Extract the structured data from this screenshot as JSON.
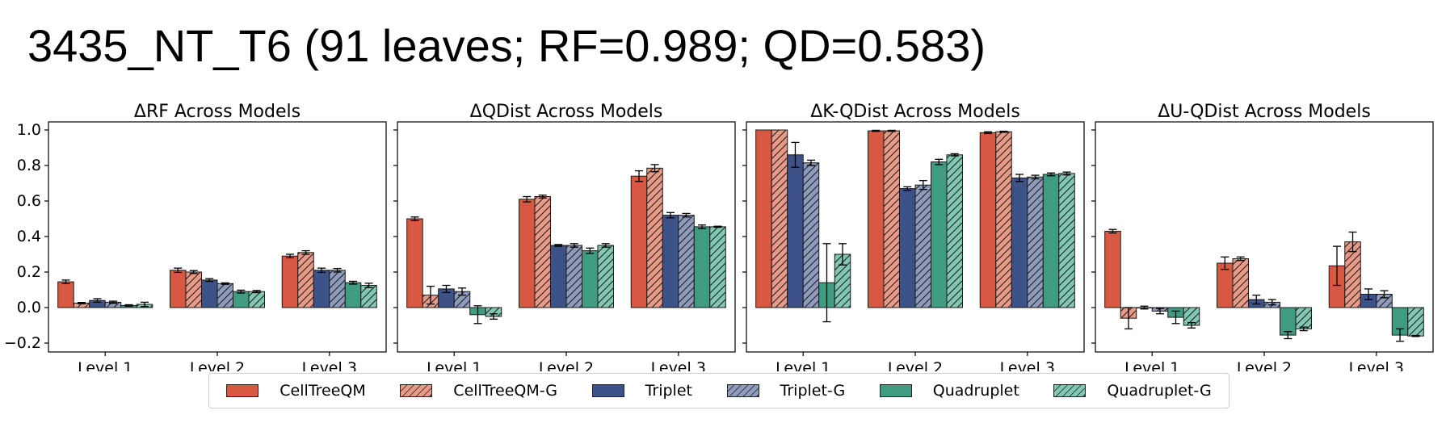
{
  "title": "3435_NT_T6 (91 leaves; RF=0.989; QD=0.583)",
  "colors": {
    "CellTreeQM": "#d95841",
    "CellTreeQM-G": "#e89a86",
    "Triplet": "#3d5288",
    "Triplet-G": "#8f9bbc",
    "Quadruplet": "#3f9b82",
    "Quadruplet-G": "#80c8b4"
  },
  "legend": [
    {
      "label": "CellTreeQM",
      "color": "#d95841",
      "hatch": false
    },
    {
      "label": "CellTreeQM-G",
      "color": "#e89a86",
      "hatch": true
    },
    {
      "label": "Triplet",
      "color": "#3d5288",
      "hatch": false
    },
    {
      "label": "Triplet-G",
      "color": "#8f9bbc",
      "hatch": true
    },
    {
      "label": "Quadruplet",
      "color": "#3f9b82",
      "hatch": false
    },
    {
      "label": "Quadruplet-G",
      "color": "#80c8b4",
      "hatch": true
    }
  ],
  "chart_data": [
    {
      "type": "bar",
      "title": "ΔRF Across Models",
      "categories": [
        "Level 1",
        "Level 2",
        "Level 3"
      ],
      "ylim": [
        -0.25,
        1.05
      ],
      "yticks": [
        "−0.2",
        "0.0",
        "0.2",
        "0.4",
        "0.6",
        "0.8",
        "1.0"
      ],
      "series": [
        {
          "name": "CellTreeQM",
          "values": [
            0.145,
            0.21,
            0.29
          ],
          "errors": [
            0.01,
            0.012,
            0.01
          ]
        },
        {
          "name": "CellTreeQM-G",
          "values": [
            0.025,
            0.2,
            0.31
          ],
          "errors": [
            0.004,
            0.008,
            0.01
          ]
        },
        {
          "name": "Triplet",
          "values": [
            0.04,
            0.155,
            0.21
          ],
          "errors": [
            0.01,
            0.008,
            0.012
          ]
        },
        {
          "name": "Triplet-G",
          "values": [
            0.03,
            0.135,
            0.21
          ],
          "errors": [
            0.006,
            0.004,
            0.01
          ]
        },
        {
          "name": "Quadruplet",
          "values": [
            0.012,
            0.09,
            0.14
          ],
          "errors": [
            0.004,
            0.008,
            0.008
          ]
        },
        {
          "name": "Quadruplet-G",
          "values": [
            0.018,
            0.09,
            0.125
          ],
          "errors": [
            0.012,
            0.006,
            0.012
          ]
        }
      ]
    },
    {
      "type": "bar",
      "title": "ΔQDist Across Models",
      "categories": [
        "Level 1",
        "Level 2",
        "Level 3"
      ],
      "ylim": [
        -0.25,
        1.05
      ],
      "yticks": [
        "−0.2",
        "0.0",
        "0.2",
        "0.4",
        "0.6",
        "0.8",
        "1.0"
      ],
      "series": [
        {
          "name": "CellTreeQM",
          "values": [
            0.5,
            0.61,
            0.74
          ],
          "errors": [
            0.01,
            0.015,
            0.03
          ]
        },
        {
          "name": "CellTreeQM-G",
          "values": [
            0.07,
            0.625,
            0.785
          ],
          "errors": [
            0.05,
            0.008,
            0.02
          ]
        },
        {
          "name": "Triplet",
          "values": [
            0.105,
            0.35,
            0.52
          ],
          "errors": [
            0.02,
            0.005,
            0.015
          ]
        },
        {
          "name": "Triplet-G",
          "values": [
            0.09,
            0.35,
            0.52
          ],
          "errors": [
            0.02,
            0.01,
            0.01
          ]
        },
        {
          "name": "Quadruplet",
          "values": [
            -0.04,
            0.32,
            0.455
          ],
          "errors": [
            0.05,
            0.015,
            0.01
          ]
        },
        {
          "name": "Quadruplet-G",
          "values": [
            -0.05,
            0.35,
            0.455
          ],
          "errors": [
            0.015,
            0.01,
            0.003
          ]
        }
      ]
    },
    {
      "type": "bar",
      "title": "ΔK-QDist Across Models",
      "categories": [
        "Level 1",
        "Level 2",
        "Level 3"
      ],
      "ylim": [
        -0.25,
        1.05
      ],
      "yticks": [
        "−0.2",
        "0.0",
        "0.2",
        "0.4",
        "0.6",
        "0.8",
        "1.0"
      ],
      "series": [
        {
          "name": "CellTreeQM",
          "values": [
            1.0,
            0.995,
            0.985
          ],
          "errors": [
            0.0,
            0.003,
            0.005
          ]
        },
        {
          "name": "CellTreeQM-G",
          "values": [
            1.0,
            0.995,
            0.99
          ],
          "errors": [
            0.0,
            0.003,
            0.003
          ]
        },
        {
          "name": "Triplet",
          "values": [
            0.86,
            0.67,
            0.73
          ],
          "errors": [
            0.07,
            0.01,
            0.02
          ]
        },
        {
          "name": "Triplet-G",
          "values": [
            0.815,
            0.69,
            0.735
          ],
          "errors": [
            0.015,
            0.025,
            0.01
          ]
        },
        {
          "name": "Quadruplet",
          "values": [
            0.14,
            0.82,
            0.75
          ],
          "errors": [
            0.22,
            0.015,
            0.008
          ]
        },
        {
          "name": "Quadruplet-G",
          "values": [
            0.3,
            0.86,
            0.755
          ],
          "errors": [
            0.06,
            0.006,
            0.008
          ]
        }
      ]
    },
    {
      "type": "bar",
      "title": "ΔU-QDist Across Models",
      "categories": [
        "Level 1",
        "Level 2",
        "Level 3"
      ],
      "ylim": [
        -0.25,
        1.05
      ],
      "yticks": [
        "−0.2",
        "0.0",
        "0.2",
        "0.4",
        "0.6",
        "0.8",
        "1.0"
      ],
      "series": [
        {
          "name": "CellTreeQM",
          "values": [
            0.43,
            0.25,
            0.235
          ],
          "errors": [
            0.01,
            0.035,
            0.11
          ]
        },
        {
          "name": "CellTreeQM-G",
          "values": [
            -0.06,
            0.275,
            0.37
          ],
          "errors": [
            0.06,
            0.01,
            0.055
          ]
        },
        {
          "name": "Triplet",
          "values": [
            0.0,
            0.045,
            0.075
          ],
          "errors": [
            0.008,
            0.025,
            0.03
          ]
        },
        {
          "name": "Triplet-G",
          "values": [
            -0.02,
            0.03,
            0.075
          ],
          "errors": [
            0.015,
            0.015,
            0.02
          ]
        },
        {
          "name": "Quadruplet",
          "values": [
            -0.055,
            -0.155,
            -0.155
          ],
          "errors": [
            0.035,
            0.02,
            0.035
          ]
        },
        {
          "name": "Quadruplet-G",
          "values": [
            -0.1,
            -0.12,
            -0.16
          ],
          "errors": [
            0.015,
            0.01,
            0.003
          ]
        }
      ]
    }
  ]
}
